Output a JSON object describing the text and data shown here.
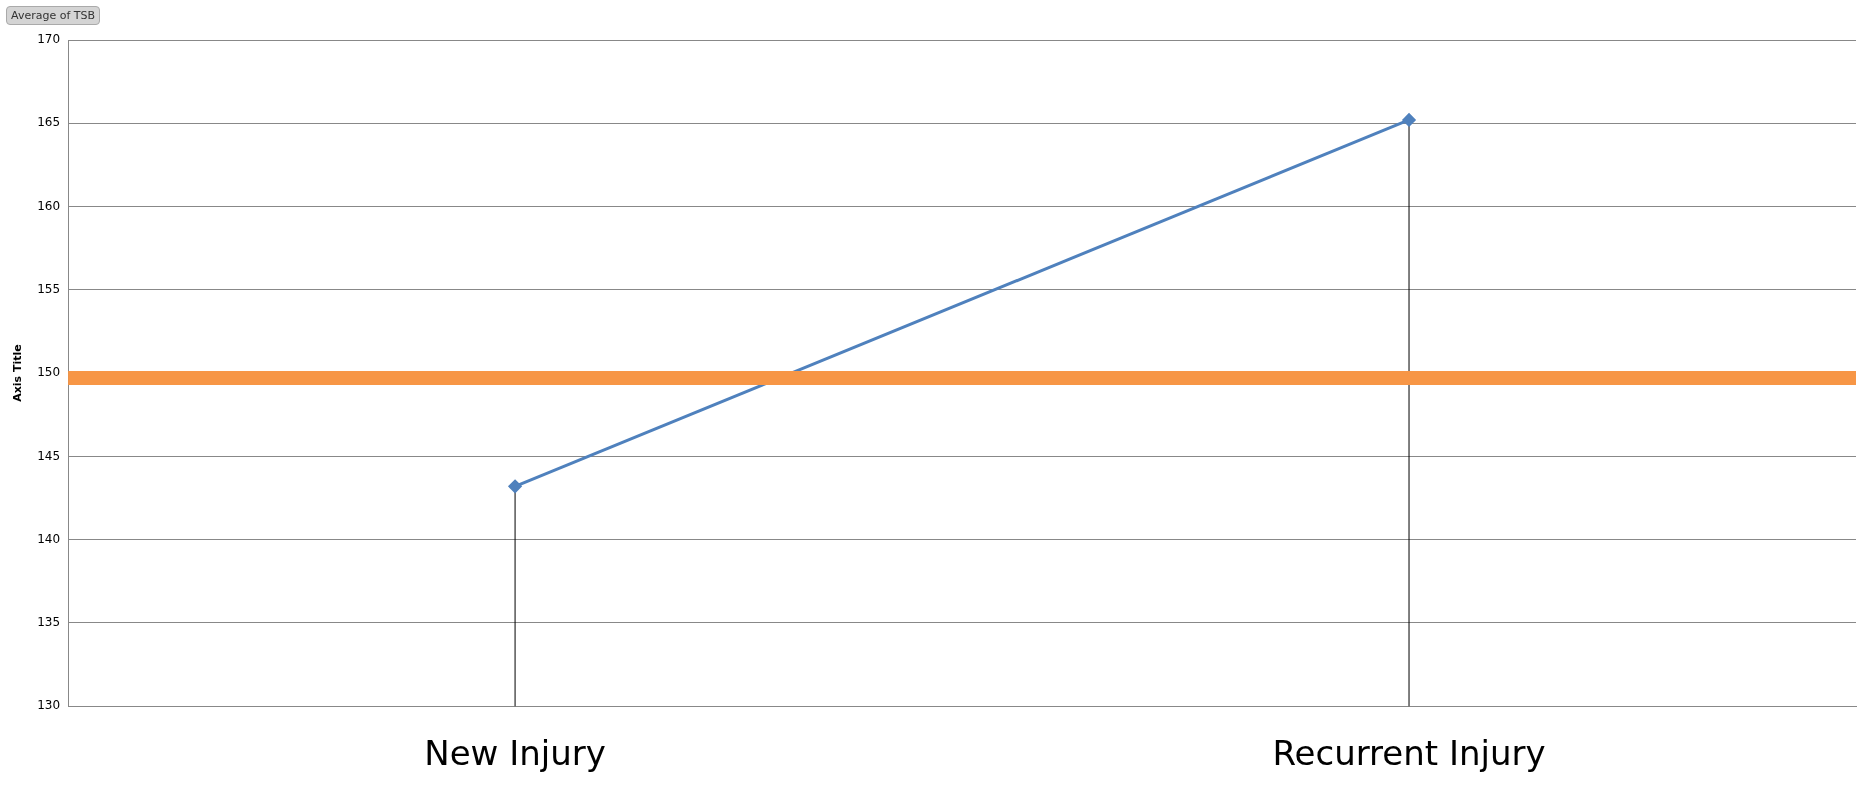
{
  "chart_data": {
    "type": "line",
    "ylabel": "Axis Title",
    "annotations": [
      "Average of TSB"
    ],
    "categories": [
      "New Injury",
      "Recurrent Injury"
    ],
    "series": [
      {
        "color": "#4f81bd",
        "values": [
          143.2,
          165.2
        ],
        "errors": [
          [
            130,
            143.2
          ],
          [
            130,
            165.2
          ]
        ]
      }
    ],
    "ylim": [
      130,
      170
    ],
    "yticks": [
      130,
      135,
      140,
      145,
      150,
      155,
      160,
      165,
      170
    ],
    "ref_lines": [
      {
        "axis": "y",
        "value": 149.7,
        "color": "#f79646"
      }
    ],
    "grid": "y",
    "legend": false,
    "marker": "diamond"
  }
}
